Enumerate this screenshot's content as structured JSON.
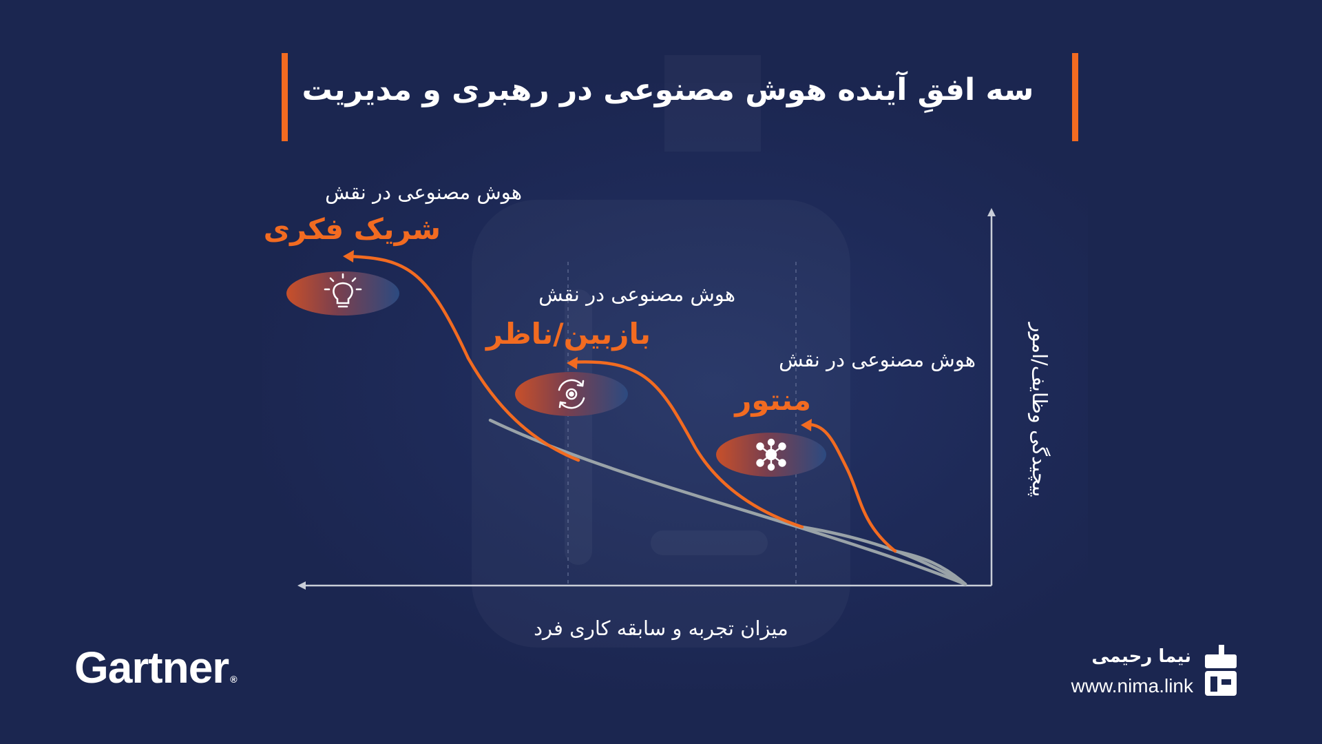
{
  "title": "سه افقِ آینده هوش مصنوعی در رهبری و مدیریت",
  "roles": [
    {
      "caption": "هوش مصنوعی در نقش",
      "name": "شریک فکری",
      "icon": "lightbulb-icon"
    },
    {
      "caption": "هوش مصنوعی در نقش",
      "name": "بازبین/ناظر",
      "icon": "gear-refresh-icon"
    },
    {
      "caption": "هوش مصنوعی در نقش",
      "name": "منتور",
      "icon": "network-icon"
    }
  ],
  "axes": {
    "x_label": "میزان تجربه و سابقه کاری فرد",
    "y_label": "پیچیدگی وظایف/امور"
  },
  "logo": {
    "text": "Gartner",
    "mark": "®"
  },
  "author": {
    "name": "نیما رحیمی",
    "url": "www.nima.link"
  },
  "colors": {
    "background": "#1b2650",
    "accent": "#f26b21",
    "curve_gray": "#9aa3a8",
    "text": "#ffffff"
  }
}
